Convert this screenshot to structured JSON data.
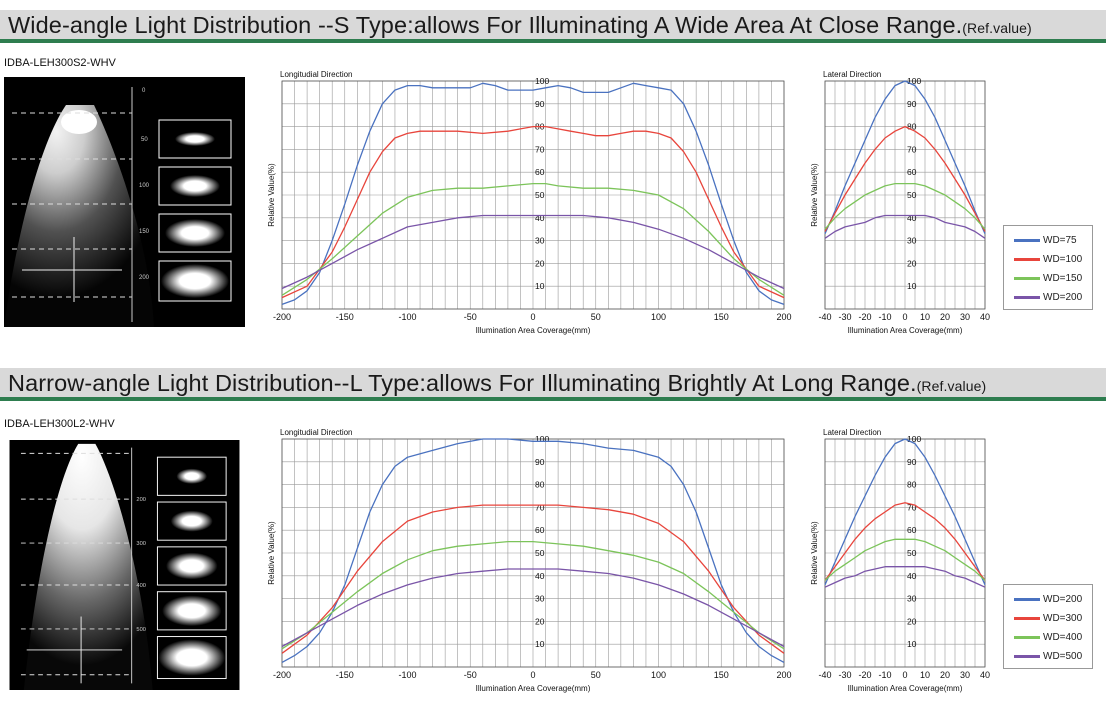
{
  "colors": {
    "blue": "#4a72c0",
    "red": "#e8453c",
    "green": "#7cc45a",
    "purple": "#7a55a8",
    "grid": "#9a9a9a",
    "accent": "#2e7d4f"
  },
  "sections": [
    {
      "title": "Wide-angle Light Distribution --S Type:allows For Illuminating A Wide Area At Close Range.",
      "ref": "(Ref.value)",
      "model": "IDBA-LEH300S2-WHV",
      "beam": {
        "wd_labels": [
          "50",
          "100",
          "150",
          "200"
        ]
      },
      "legend": [
        "WD=75",
        "WD=100",
        "WD=150",
        "WD=200"
      ]
    },
    {
      "title": "Narrow-angle Light Distribution--L Type:allows For Illuminating  Brightly At Long  Range.",
      "ref": "(Ref.value)",
      "model": "IDBA-LEH300L2-WHV",
      "beam": {
        "wd_labels": [
          "200",
          "300",
          "400",
          "500"
        ]
      },
      "legend": [
        "WD=200",
        "WD=300",
        "WD=400",
        "WD=500"
      ]
    }
  ],
  "chart_data": [
    {
      "type": "line",
      "title": "Longitudial Direction",
      "xlabel": "Illumination Area Coverage(mm)",
      "ylabel": "Relative Value(%)",
      "xlim": [
        -200,
        200
      ],
      "ylim": [
        0,
        100
      ],
      "xticks": [
        -200,
        -150,
        -100,
        -50,
        0,
        50,
        100,
        150,
        200
      ],
      "yticks": [
        10,
        20,
        30,
        40,
        50,
        60,
        70,
        80,
        90,
        100
      ],
      "series": [
        {
          "name": "WD=75",
          "x": [
            -200,
            -190,
            -180,
            -170,
            -160,
            -150,
            -140,
            -130,
            -120,
            -110,
            -100,
            -90,
            -80,
            -60,
            -50,
            -40,
            -30,
            -20,
            -10,
            0,
            10,
            20,
            30,
            40,
            50,
            60,
            70,
            80,
            90,
            100,
            110,
            120,
            130,
            140,
            150,
            160,
            170,
            180,
            190,
            200
          ],
          "y": [
            2,
            4,
            8,
            16,
            30,
            46,
            63,
            78,
            90,
            96,
            98,
            98,
            97,
            97,
            97,
            99,
            98,
            96,
            96,
            96,
            97,
            98,
            97,
            95,
            95,
            95,
            97,
            99,
            98,
            97,
            96,
            90,
            78,
            63,
            46,
            30,
            16,
            8,
            4,
            2
          ]
        },
        {
          "name": "WD=100",
          "x": [
            -200,
            -180,
            -160,
            -150,
            -140,
            -130,
            -120,
            -110,
            -100,
            -90,
            -80,
            -60,
            -40,
            -20,
            -10,
            0,
            10,
            20,
            30,
            40,
            50,
            60,
            70,
            80,
            90,
            100,
            110,
            120,
            130,
            140,
            150,
            160,
            180,
            200
          ],
          "y": [
            5,
            10,
            25,
            36,
            48,
            60,
            69,
            75,
            77,
            78,
            78,
            78,
            77,
            78,
            79,
            80,
            80,
            79,
            78,
            77,
            76,
            76,
            77,
            78,
            78,
            77,
            75,
            69,
            60,
            48,
            36,
            25,
            10,
            5
          ]
        },
        {
          "name": "WD=150",
          "x": [
            -200,
            -180,
            -160,
            -140,
            -120,
            -100,
            -80,
            -60,
            -40,
            -20,
            0,
            10,
            20,
            40,
            60,
            80,
            100,
            120,
            140,
            160,
            180,
            200
          ],
          "y": [
            6,
            13,
            22,
            32,
            42,
            49,
            52,
            53,
            53,
            54,
            55,
            55,
            54,
            53,
            53,
            52,
            50,
            44,
            34,
            22,
            13,
            6
          ]
        },
        {
          "name": "WD=200",
          "x": [
            -200,
            -180,
            -160,
            -140,
            -120,
            -100,
            -80,
            -60,
            -40,
            -20,
            0,
            20,
            40,
            60,
            80,
            100,
            120,
            140,
            160,
            180,
            200
          ],
          "y": [
            9,
            14,
            20,
            26,
            31,
            36,
            38,
            40,
            41,
            41,
            41,
            41,
            41,
            40,
            38,
            35,
            31,
            26,
            20,
            14,
            9
          ]
        }
      ]
    },
    {
      "type": "line",
      "title": "Lateral Direction",
      "xlabel": "Illumination Area Coverage(mm)",
      "ylabel": "Relative Value(%)",
      "xlim": [
        -40,
        40
      ],
      "ylim": [
        0,
        100
      ],
      "xticks": [
        -40,
        -30,
        -20,
        -10,
        0,
        10,
        20,
        30,
        40
      ],
      "yticks": [
        10,
        20,
        30,
        40,
        50,
        60,
        70,
        80,
        90,
        100
      ],
      "series": [
        {
          "name": "WD=75",
          "x": [
            -40,
            -35,
            -30,
            -25,
            -20,
            -15,
            -10,
            -5,
            0,
            5,
            10,
            15,
            20,
            25,
            30,
            35,
            40
          ],
          "y": [
            33,
            43,
            54,
            64,
            74,
            84,
            92,
            98,
            100,
            98,
            92,
            84,
            74,
            64,
            54,
            43,
            33
          ]
        },
        {
          "name": "WD=100",
          "x": [
            -40,
            -35,
            -30,
            -25,
            -20,
            -15,
            -10,
            -5,
            0,
            5,
            10,
            15,
            20,
            25,
            30,
            35,
            40
          ],
          "y": [
            34,
            42,
            50,
            57,
            64,
            70,
            75,
            78,
            80,
            78,
            75,
            70,
            64,
            57,
            50,
            42,
            34
          ]
        },
        {
          "name": "WD=150",
          "x": [
            -40,
            -35,
            -30,
            -25,
            -20,
            -15,
            -10,
            -5,
            0,
            5,
            10,
            15,
            20,
            25,
            30,
            35,
            40
          ],
          "y": [
            35,
            40,
            44,
            47,
            50,
            52,
            54,
            55,
            55,
            55,
            54,
            52,
            50,
            47,
            44,
            40,
            35
          ]
        },
        {
          "name": "WD=200",
          "x": [
            -40,
            -35,
            -30,
            -25,
            -20,
            -15,
            -10,
            -5,
            0,
            5,
            10,
            15,
            20,
            25,
            30,
            35,
            40
          ],
          "y": [
            31,
            34,
            36,
            37,
            38,
            40,
            41,
            41,
            41,
            41,
            41,
            40,
            38,
            37,
            36,
            34,
            31
          ]
        }
      ]
    },
    {
      "type": "line",
      "title": "Longitudial Direction",
      "xlabel": "Illumination Area Coverage(mm)",
      "ylabel": "Relative Value(%)",
      "xlim": [
        -200,
        200
      ],
      "ylim": [
        0,
        100
      ],
      "xticks": [
        -200,
        -150,
        -100,
        -50,
        0,
        50,
        100,
        150,
        200
      ],
      "yticks": [
        10,
        20,
        30,
        40,
        50,
        60,
        70,
        80,
        90,
        100
      ],
      "series": [
        {
          "name": "WD=200",
          "x": [
            -200,
            -190,
            -180,
            -170,
            -160,
            -150,
            -140,
            -130,
            -120,
            -110,
            -100,
            -80,
            -60,
            -40,
            -20,
            0,
            20,
            40,
            60,
            80,
            100,
            110,
            120,
            130,
            140,
            150,
            160,
            170,
            180,
            190,
            200
          ],
          "y": [
            2,
            5,
            9,
            15,
            24,
            36,
            52,
            68,
            80,
            88,
            92,
            95,
            98,
            100,
            100,
            99,
            99,
            98,
            96,
            95,
            92,
            88,
            80,
            68,
            52,
            36,
            24,
            15,
            9,
            5,
            2
          ]
        },
        {
          "name": "WD=300",
          "x": [
            -200,
            -180,
            -160,
            -140,
            -120,
            -100,
            -80,
            -60,
            -40,
            -20,
            0,
            20,
            40,
            60,
            80,
            100,
            120,
            140,
            160,
            180,
            200
          ],
          "y": [
            6,
            14,
            26,
            42,
            55,
            64,
            68,
            70,
            71,
            71,
            71,
            71,
            70,
            69,
            67,
            63,
            55,
            42,
            26,
            14,
            6
          ]
        },
        {
          "name": "WD=400",
          "x": [
            -200,
            -180,
            -160,
            -140,
            -120,
            -100,
            -80,
            -60,
            -40,
            -20,
            0,
            20,
            40,
            60,
            80,
            100,
            120,
            140,
            160,
            180,
            200
          ],
          "y": [
            8,
            15,
            24,
            33,
            41,
            47,
            51,
            53,
            54,
            55,
            55,
            54,
            53,
            51,
            49,
            46,
            41,
            33,
            24,
            15,
            8
          ]
        },
        {
          "name": "WD=500",
          "x": [
            -200,
            -180,
            -160,
            -140,
            -120,
            -100,
            -80,
            -60,
            -40,
            -20,
            0,
            20,
            40,
            60,
            80,
            100,
            120,
            140,
            160,
            180,
            200
          ],
          "y": [
            9,
            15,
            21,
            27,
            32,
            36,
            39,
            41,
            42,
            43,
            43,
            43,
            42,
            41,
            39,
            36,
            32,
            27,
            21,
            15,
            9
          ]
        }
      ]
    },
    {
      "type": "line",
      "title": "Lateral Direction",
      "xlabel": "Illumination Area Coverage(mm)",
      "ylabel": "Relative Value(%)",
      "xlim": [
        -40,
        40
      ],
      "ylim": [
        0,
        100
      ],
      "xticks": [
        -40,
        -30,
        -20,
        -10,
        0,
        10,
        20,
        30,
        40
      ],
      "yticks": [
        10,
        20,
        30,
        40,
        50,
        60,
        70,
        80,
        90,
        100
      ],
      "series": [
        {
          "name": "WD=200",
          "x": [
            -40,
            -35,
            -30,
            -25,
            -20,
            -15,
            -10,
            -5,
            0,
            5,
            10,
            15,
            20,
            25,
            30,
            35,
            40
          ],
          "y": [
            36,
            46,
            56,
            66,
            75,
            84,
            92,
            98,
            100,
            98,
            92,
            84,
            75,
            66,
            56,
            46,
            36
          ]
        },
        {
          "name": "WD=300",
          "x": [
            -40,
            -35,
            -30,
            -25,
            -20,
            -15,
            -10,
            -5,
            0,
            5,
            10,
            15,
            20,
            25,
            30,
            35,
            40
          ],
          "y": [
            38,
            44,
            50,
            56,
            61,
            65,
            68,
            71,
            72,
            71,
            68,
            65,
            61,
            56,
            50,
            44,
            38
          ]
        },
        {
          "name": "WD=400",
          "x": [
            -40,
            -35,
            -30,
            -25,
            -20,
            -15,
            -10,
            -5,
            0,
            5,
            10,
            15,
            20,
            25,
            30,
            35,
            40
          ],
          "y": [
            38,
            42,
            45,
            48,
            51,
            53,
            55,
            56,
            56,
            56,
            55,
            53,
            51,
            48,
            45,
            42,
            38
          ]
        },
        {
          "name": "WD=500",
          "x": [
            -40,
            -35,
            -30,
            -25,
            -20,
            -15,
            -10,
            -5,
            0,
            5,
            10,
            15,
            20,
            25,
            30,
            35,
            40
          ],
          "y": [
            35,
            37,
            39,
            40,
            42,
            43,
            44,
            44,
            44,
            44,
            44,
            43,
            42,
            40,
            39,
            37,
            35
          ]
        }
      ]
    }
  ]
}
